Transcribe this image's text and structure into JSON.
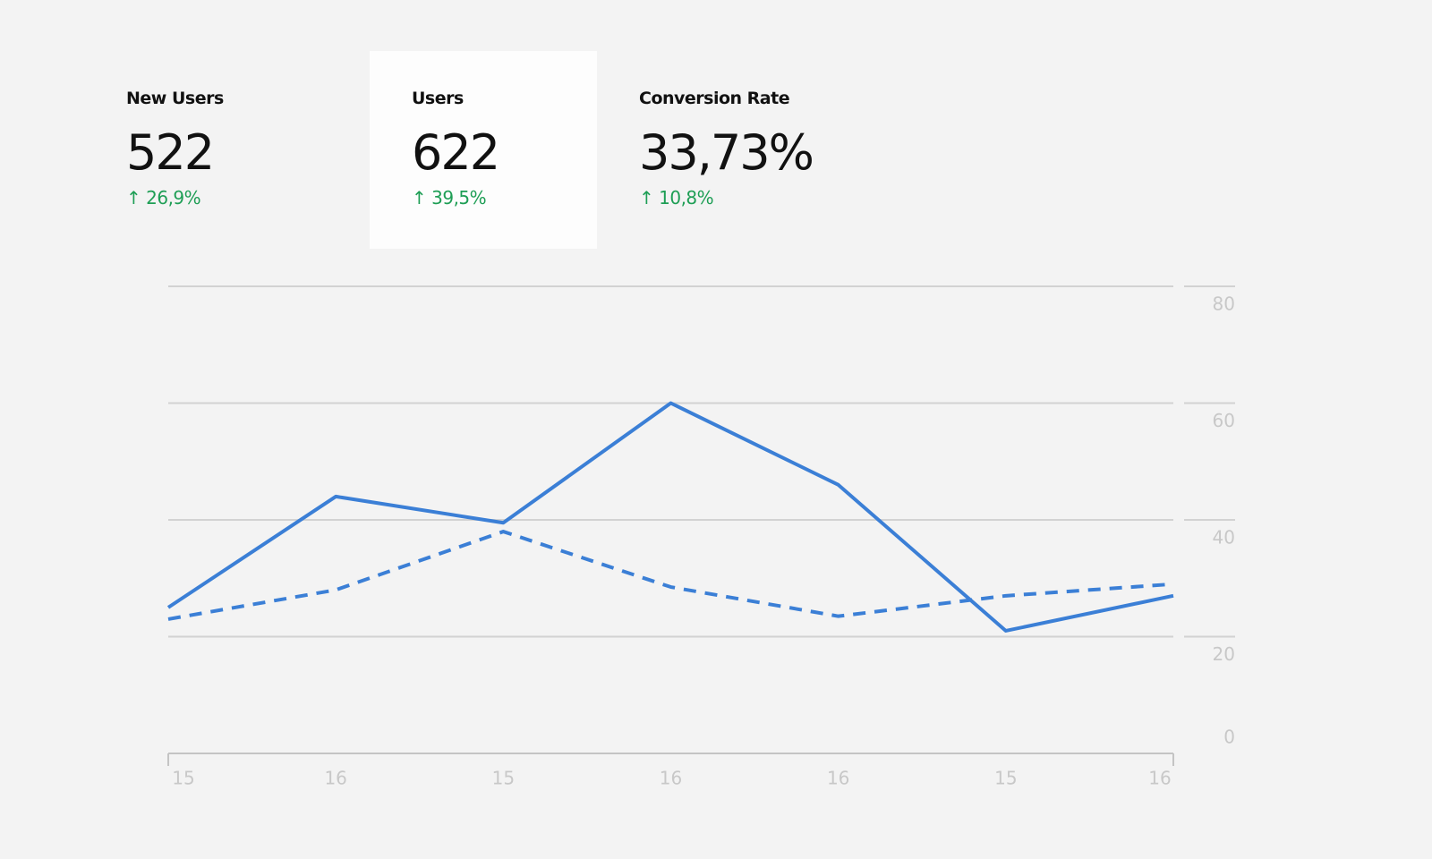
{
  "kpis": [
    {
      "label": "New Users",
      "value": "522",
      "change": "↑ 26,9%"
    },
    {
      "label": "Users",
      "value": "622",
      "change": "↑ 39,5%"
    },
    {
      "label": "Conversion Rate",
      "value": "33,73%",
      "change": "↑ 10,8%"
    }
  ],
  "selected_kpi": 1,
  "chart_data": {
    "type": "line",
    "categories": [
      "15",
      "16",
      "15",
      "16",
      "16",
      "15",
      "16"
    ],
    "series": [
      {
        "color": "#3b7fd6",
        "dashed": false,
        "values": [
          25,
          44,
          39.5,
          60,
          46,
          21,
          27
        ]
      },
      {
        "color": "#3b7fd6",
        "dashed": true,
        "values": [
          23,
          28,
          38,
          28.5,
          23.5,
          27,
          29
        ]
      }
    ],
    "ylim": [
      0,
      80
    ],
    "yticks": [
      0,
      20,
      40,
      60,
      80
    ],
    "grid": true,
    "y_axis_side": "right"
  }
}
